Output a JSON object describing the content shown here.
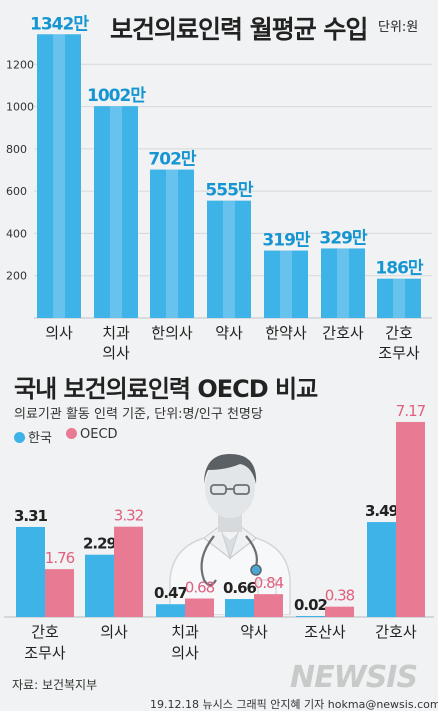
{
  "chart1": {
    "title": "보건의료인력 월평균 수입",
    "unit": "단위:원",
    "chart_data": {
      "type": "bar",
      "categories": [
        "의사",
        "치과\n의사",
        "한의사",
        "약사",
        "한약사",
        "간호사",
        "간호\n조무사"
      ],
      "values": [
        1342,
        1002,
        702,
        555,
        319,
        329,
        186
      ],
      "value_labels": [
        "1342만",
        "1002만",
        "702만",
        "555만",
        "319만",
        "329만",
        "186만"
      ],
      "ylim": [
        0,
        1400
      ],
      "yticks": [
        200,
        400,
        600,
        800,
        1000,
        1200
      ],
      "grid": true,
      "bar_color": "#3db3e8"
    }
  },
  "chart2": {
    "title": "국내 보건의료인력 OECD 비교",
    "subtitle": "의료기관 활동 인력 기준, 단위:명/인구 천명당",
    "legend": [
      {
        "label": "한국",
        "color": "#3db3e8"
      },
      {
        "label": "OECD",
        "color": "#e87b93"
      }
    ],
    "chart_data": {
      "type": "bar",
      "categories": [
        "간호\n조무사",
        "의사",
        "치과\n의사",
        "약사",
        "조산사",
        "간호사"
      ],
      "series": [
        {
          "name": "한국",
          "values": [
            3.31,
            2.29,
            0.47,
            0.66,
            0.02,
            3.49
          ],
          "labels": [
            "3.31",
            "2.29",
            "0.47",
            "0.66",
            "0.02",
            "3.49"
          ],
          "color": "#3db3e8"
        },
        {
          "name": "OECD",
          "values": [
            1.76,
            3.32,
            0.68,
            0.84,
            0.38,
            7.17
          ],
          "labels": [
            "1.76",
            "3.32",
            "0.68",
            "0.84",
            "0.38",
            "7.17"
          ],
          "color": "#e87b93"
        }
      ],
      "legend_position": "top-left"
    }
  },
  "illustration": {
    "icon": "doctor-icon"
  },
  "source": "자료: 보건복지부",
  "credit": "19.12.18 뉴시스 그래픽 안지혜 기자 hokma@newsis.com",
  "watermark": "NEWSIS"
}
